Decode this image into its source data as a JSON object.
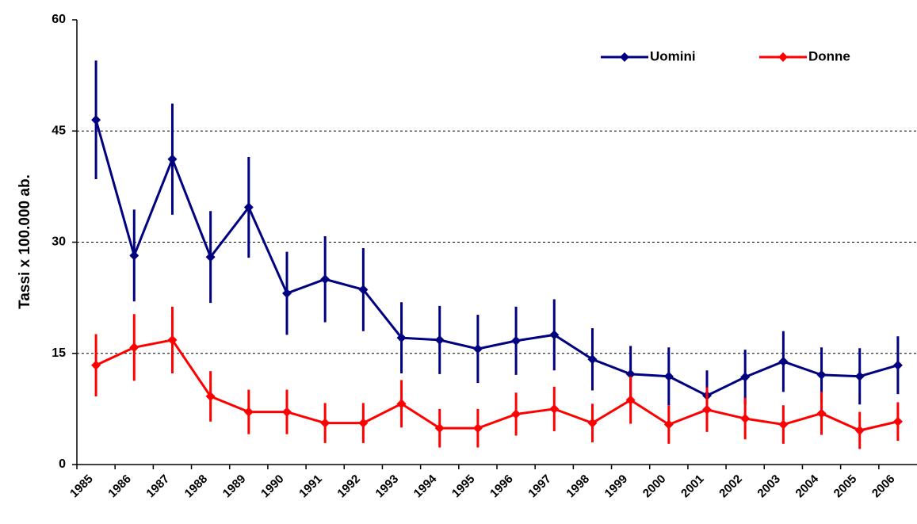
{
  "chart_data": {
    "type": "line",
    "y_label": "Tassi x 100.000 ab.",
    "categories": [
      "1985",
      "1986",
      "1987",
      "1988",
      "1989",
      "1990",
      "1991",
      "1992",
      "1993",
      "1994",
      "1995",
      "1996",
      "1997",
      "1998",
      "1999",
      "2000",
      "2001",
      "2002",
      "2003",
      "2004",
      "2005",
      "2006"
    ],
    "series": [
      {
        "name": "Uomini",
        "color": "#000080",
        "values": [
          46.5,
          28.2,
          41.2,
          28,
          34.7,
          23.1,
          25,
          23.6,
          17.1,
          16.8,
          15.6,
          16.7,
          17.5,
          14.2,
          12.2,
          11.9,
          9.3,
          11.8,
          13.9,
          12.1,
          11.9,
          13.4
        ],
        "errors": [
          8,
          6.2,
          7.5,
          6.2,
          6.8,
          5.6,
          5.8,
          5.6,
          4.8,
          4.6,
          4.6,
          4.6,
          4.8,
          4.2,
          3.8,
          3.9,
          3.4,
          3.7,
          4.1,
          3.7,
          3.8,
          3.9
        ]
      },
      {
        "name": "Donne",
        "color": "#ff0000",
        "values": [
          13.4,
          15.8,
          16.8,
          9.2,
          7.1,
          7.1,
          5.6,
          5.6,
          8.2,
          4.9,
          4.9,
          6.8,
          7.5,
          5.6,
          8.7,
          5.4,
          7.4,
          6.2,
          5.4,
          6.9,
          4.6,
          5.8
        ],
        "errors": [
          4.2,
          4.5,
          4.5,
          3.4,
          3,
          3,
          2.7,
          2.7,
          3.2,
          2.6,
          2.6,
          2.9,
          3,
          2.6,
          3.2,
          2.6,
          3,
          2.8,
          2.6,
          2.9,
          2.5,
          2.6
        ]
      }
    ],
    "ylim": [
      0,
      60
    ],
    "yticks": [
      0,
      15,
      30,
      45,
      60
    ],
    "grid": true,
    "legend": "top-right"
  }
}
